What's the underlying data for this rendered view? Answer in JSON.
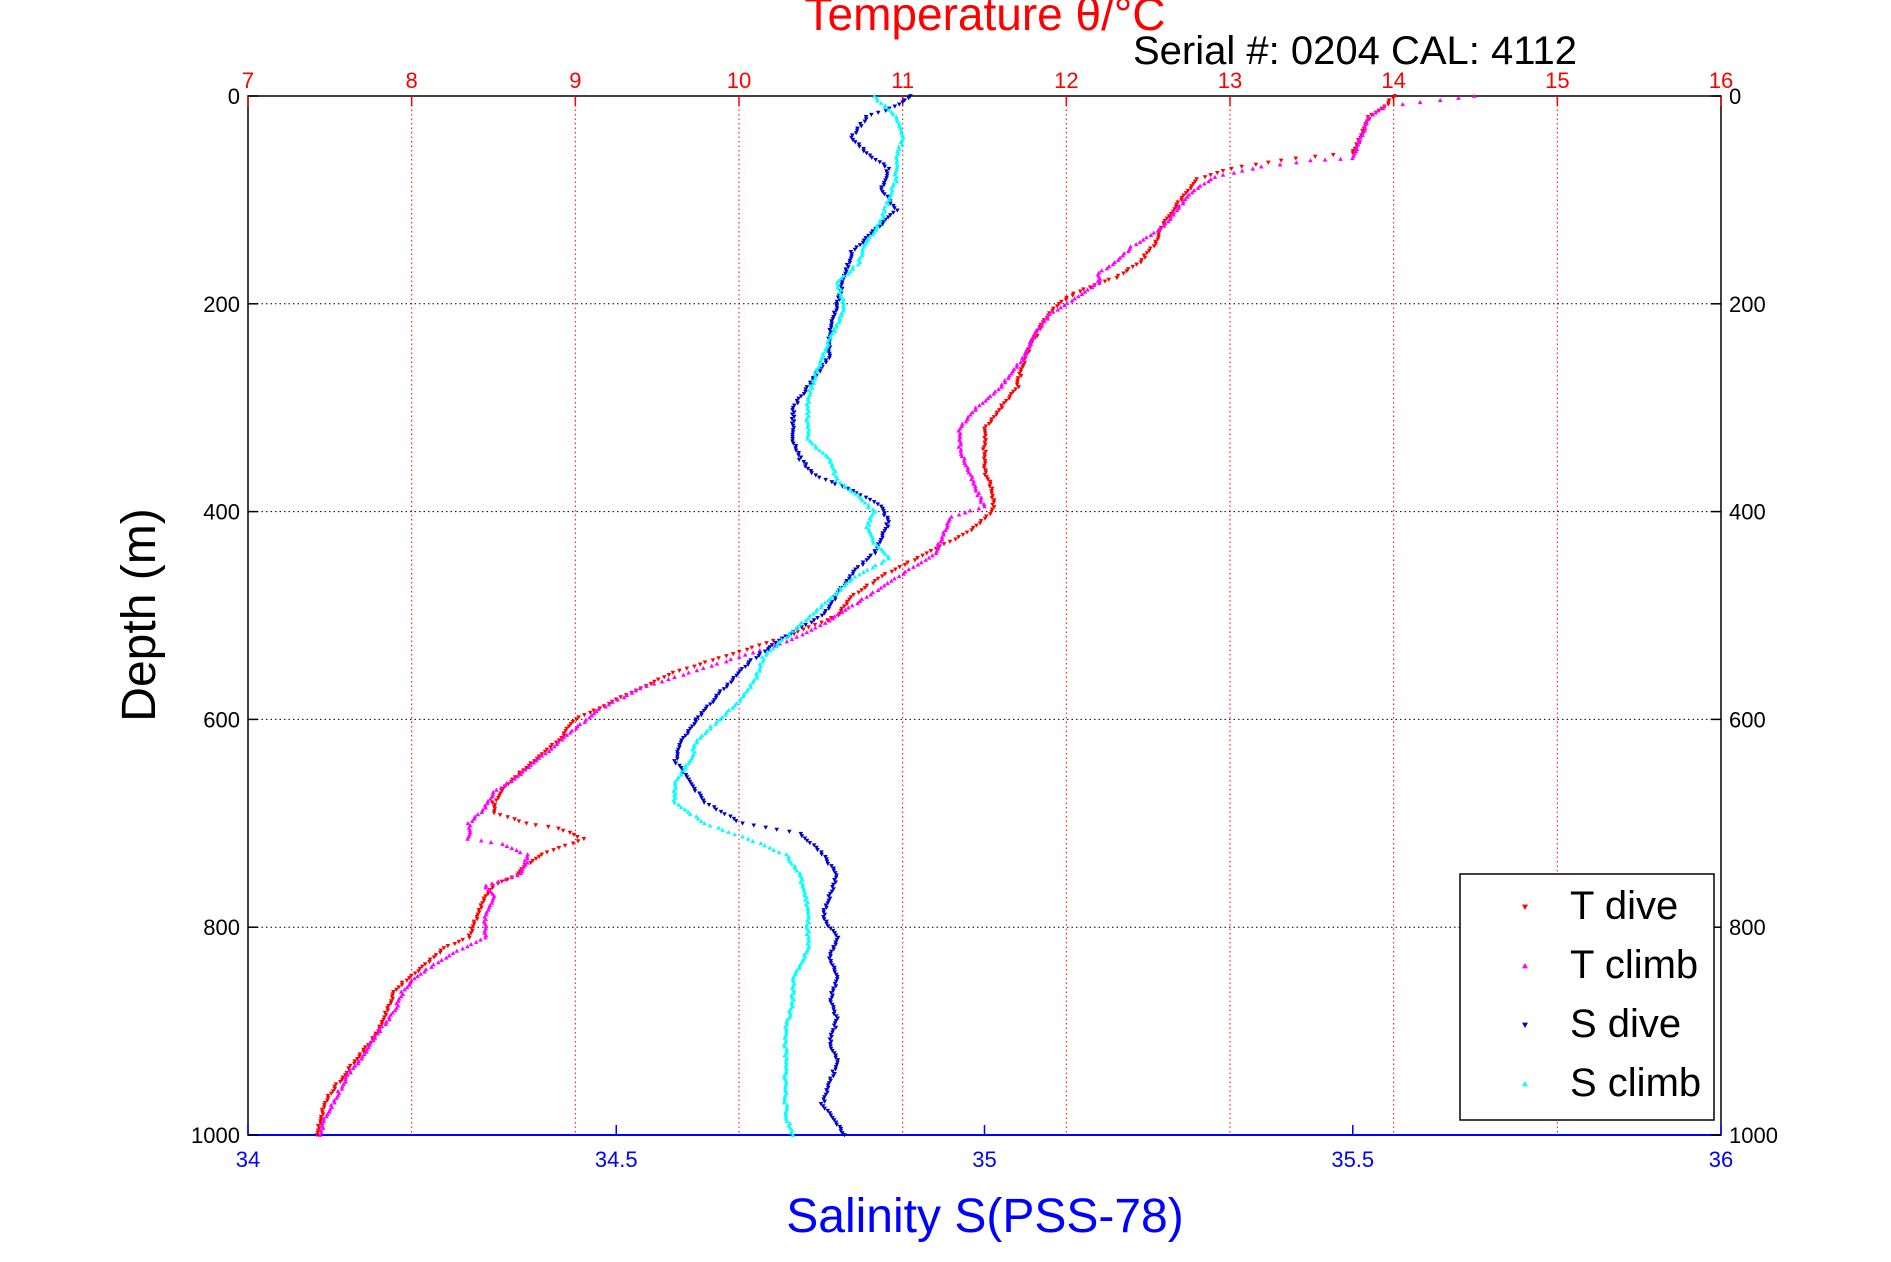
{
  "chart_data": {
    "type": "scatter",
    "title": "Temperature θ/°C",
    "annotation": "Serial #: 0204  CAL: 4112",
    "ylabel": "Depth (m)",
    "xlabel_bottom": "Salinity S(PSS-78)",
    "y_axis": {
      "range": [
        0,
        1000
      ],
      "reversed": true,
      "ticks": [
        "0",
        "200",
        "400",
        "600",
        "800",
        "1000"
      ],
      "tick_values": [
        0,
        200,
        400,
        600,
        800,
        1000
      ]
    },
    "x_top_axis": {
      "quantity": "temperature",
      "range": [
        7,
        16
      ],
      "ticks": [
        "7",
        "8",
        "9",
        "10",
        "11",
        "12",
        "13",
        "14",
        "15",
        "16"
      ],
      "tick_values": [
        7,
        8,
        9,
        10,
        11,
        12,
        13,
        14,
        15,
        16
      ]
    },
    "x_bottom_axis": {
      "quantity": "salinity",
      "range": [
        34,
        36
      ],
      "ticks": [
        "34",
        "34.5",
        "35",
        "35.5",
        "36"
      ],
      "tick_values": [
        34,
        34.5,
        35,
        35.5,
        36
      ]
    },
    "grid": true,
    "legend_position": "bottom-right",
    "colors": {
      "temperature_axis": "#ff0000",
      "salinity_axis": "#0000ff",
      "t_dive": "#ff0000",
      "t_climb": "#ff00ff",
      "s_dive": "#0000cc",
      "s_climb": "#00ffff"
    },
    "series": [
      {
        "name": "T dive",
        "axis": "temperature",
        "marker": "triangle-down",
        "color": "#ff0000",
        "points": [
          [
            14.0,
            0
          ],
          [
            13.95,
            10
          ],
          [
            13.85,
            20
          ],
          [
            13.8,
            40
          ],
          [
            13.75,
            55
          ],
          [
            13.4,
            60
          ],
          [
            13.0,
            70
          ],
          [
            12.8,
            80
          ],
          [
            12.7,
            100
          ],
          [
            12.6,
            120
          ],
          [
            12.55,
            140
          ],
          [
            12.45,
            160
          ],
          [
            12.3,
            175
          ],
          [
            12.2,
            180
          ],
          [
            12.05,
            190
          ],
          [
            11.95,
            200
          ],
          [
            11.85,
            220
          ],
          [
            11.75,
            250
          ],
          [
            11.7,
            280
          ],
          [
            11.6,
            300
          ],
          [
            11.5,
            320
          ],
          [
            11.5,
            340
          ],
          [
            11.5,
            360
          ],
          [
            11.55,
            380
          ],
          [
            11.55,
            400
          ],
          [
            11.4,
            420
          ],
          [
            11.15,
            440
          ],
          [
            10.9,
            460
          ],
          [
            10.7,
            480
          ],
          [
            10.6,
            500
          ],
          [
            10.3,
            520
          ],
          [
            10.0,
            535
          ],
          [
            9.8,
            545
          ],
          [
            9.6,
            555
          ],
          [
            9.4,
            570
          ],
          [
            9.2,
            585
          ],
          [
            9.0,
            600
          ],
          [
            8.9,
            620
          ],
          [
            8.75,
            640
          ],
          [
            8.6,
            660
          ],
          [
            8.5,
            680
          ],
          [
            8.5,
            690
          ],
          [
            8.7,
            700
          ],
          [
            8.9,
            705
          ],
          [
            9.05,
            715
          ],
          [
            8.8,
            730
          ],
          [
            8.7,
            740
          ],
          [
            8.65,
            750
          ],
          [
            8.5,
            760
          ],
          [
            8.45,
            770
          ],
          [
            8.4,
            790
          ],
          [
            8.35,
            810
          ],
          [
            8.2,
            820
          ],
          [
            8.05,
            840
          ],
          [
            7.9,
            860
          ],
          [
            7.85,
            880
          ],
          [
            7.8,
            900
          ],
          [
            7.7,
            920
          ],
          [
            7.6,
            940
          ],
          [
            7.5,
            960
          ],
          [
            7.45,
            980
          ],
          [
            7.42,
            1000
          ]
        ]
      },
      {
        "name": "T climb",
        "axis": "temperature",
        "marker": "triangle-up",
        "color": "#ff00ff",
        "points": [
          [
            14.5,
            0
          ],
          [
            13.95,
            10
          ],
          [
            13.85,
            20
          ],
          [
            13.8,
            40
          ],
          [
            13.75,
            60
          ],
          [
            13.5,
            62
          ],
          [
            13.2,
            68
          ],
          [
            12.9,
            78
          ],
          [
            12.75,
            95
          ],
          [
            12.6,
            125
          ],
          [
            12.4,
            145
          ],
          [
            12.3,
            160
          ],
          [
            12.2,
            170
          ],
          [
            12.2,
            180
          ],
          [
            12.05,
            195
          ],
          [
            11.9,
            210
          ],
          [
            11.8,
            230
          ],
          [
            11.75,
            250
          ],
          [
            11.6,
            280
          ],
          [
            11.45,
            300
          ],
          [
            11.35,
            320
          ],
          [
            11.35,
            340
          ],
          [
            11.4,
            360
          ],
          [
            11.45,
            380
          ],
          [
            11.5,
            395
          ],
          [
            11.3,
            405
          ],
          [
            11.25,
            420
          ],
          [
            11.2,
            440
          ],
          [
            11.0,
            460
          ],
          [
            10.8,
            480
          ],
          [
            10.55,
            505
          ],
          [
            10.3,
            525
          ],
          [
            10.0,
            540
          ],
          [
            9.7,
            555
          ],
          [
            9.4,
            570
          ],
          [
            9.15,
            590
          ],
          [
            8.95,
            615
          ],
          [
            8.8,
            635
          ],
          [
            8.65,
            655
          ],
          [
            8.5,
            670
          ],
          [
            8.45,
            685
          ],
          [
            8.35,
            700
          ],
          [
            8.35,
            715
          ],
          [
            8.55,
            720
          ],
          [
            8.7,
            730
          ],
          [
            8.7,
            740
          ],
          [
            8.65,
            750
          ],
          [
            8.45,
            760
          ],
          [
            8.5,
            770
          ],
          [
            8.45,
            790
          ],
          [
            8.45,
            810
          ],
          [
            8.25,
            825
          ],
          [
            8.05,
            845
          ],
          [
            7.95,
            860
          ],
          [
            7.9,
            880
          ],
          [
            7.8,
            900
          ],
          [
            7.72,
            920
          ],
          [
            7.62,
            940
          ],
          [
            7.55,
            960
          ],
          [
            7.48,
            980
          ],
          [
            7.44,
            1000
          ]
        ]
      },
      {
        "name": "S dive",
        "axis": "salinity",
        "marker": "triangle-down",
        "color": "#0000cc",
        "points": [
          [
            34.9,
            0
          ],
          [
            34.88,
            10
          ],
          [
            34.84,
            20
          ],
          [
            34.82,
            40
          ],
          [
            34.84,
            55
          ],
          [
            34.87,
            70
          ],
          [
            34.86,
            90
          ],
          [
            34.88,
            110
          ],
          [
            34.85,
            130
          ],
          [
            34.82,
            150
          ],
          [
            34.81,
            175
          ],
          [
            34.8,
            200
          ],
          [
            34.79,
            225
          ],
          [
            34.79,
            250
          ],
          [
            34.76,
            280
          ],
          [
            34.74,
            300
          ],
          [
            34.74,
            330
          ],
          [
            34.75,
            350
          ],
          [
            34.77,
            365
          ],
          [
            34.82,
            380
          ],
          [
            34.86,
            395
          ],
          [
            34.87,
            410
          ],
          [
            34.85,
            440
          ],
          [
            34.82,
            460
          ],
          [
            34.8,
            480
          ],
          [
            34.78,
            500
          ],
          [
            34.73,
            520
          ],
          [
            34.68,
            545
          ],
          [
            34.64,
            575
          ],
          [
            34.61,
            600
          ],
          [
            34.59,
            620
          ],
          [
            34.58,
            640
          ],
          [
            34.6,
            660
          ],
          [
            34.62,
            680
          ],
          [
            34.67,
            700
          ],
          [
            34.75,
            710
          ],
          [
            34.78,
            730
          ],
          [
            34.8,
            750
          ],
          [
            34.79,
            770
          ],
          [
            34.78,
            790
          ],
          [
            34.8,
            810
          ],
          [
            34.79,
            830
          ],
          [
            34.8,
            850
          ],
          [
            34.79,
            870
          ],
          [
            34.8,
            890
          ],
          [
            34.79,
            910
          ],
          [
            34.8,
            930
          ],
          [
            34.79,
            950
          ],
          [
            34.78,
            970
          ],
          [
            34.8,
            990
          ],
          [
            34.81,
            1000
          ]
        ]
      },
      {
        "name": "S climb",
        "axis": "salinity",
        "marker": "triangle-up",
        "color": "#00ffff",
        "points": [
          [
            34.85,
            0
          ],
          [
            34.88,
            20
          ],
          [
            34.89,
            40
          ],
          [
            34.88,
            60
          ],
          [
            34.88,
            80
          ],
          [
            34.87,
            100
          ],
          [
            34.86,
            120
          ],
          [
            34.84,
            140
          ],
          [
            34.83,
            160
          ],
          [
            34.8,
            180
          ],
          [
            34.81,
            200
          ],
          [
            34.8,
            220
          ],
          [
            34.78,
            250
          ],
          [
            34.77,
            270
          ],
          [
            34.76,
            290
          ],
          [
            34.76,
            310
          ],
          [
            34.76,
            330
          ],
          [
            34.79,
            350
          ],
          [
            34.8,
            370
          ],
          [
            34.83,
            385
          ],
          [
            34.85,
            400
          ],
          [
            34.84,
            415
          ],
          [
            34.85,
            430
          ],
          [
            34.87,
            445
          ],
          [
            34.82,
            465
          ],
          [
            34.78,
            490
          ],
          [
            34.74,
            515
          ],
          [
            34.7,
            540
          ],
          [
            34.69,
            560
          ],
          [
            34.67,
            580
          ],
          [
            34.64,
            600
          ],
          [
            34.61,
            620
          ],
          [
            34.6,
            640
          ],
          [
            34.58,
            660
          ],
          [
            34.58,
            680
          ],
          [
            34.62,
            700
          ],
          [
            34.68,
            715
          ],
          [
            34.73,
            730
          ],
          [
            34.75,
            750
          ],
          [
            34.76,
            780
          ],
          [
            34.76,
            800
          ],
          [
            34.76,
            820
          ],
          [
            34.74,
            850
          ],
          [
            34.74,
            870
          ],
          [
            34.73,
            900
          ],
          [
            34.73,
            930
          ],
          [
            34.73,
            960
          ],
          [
            34.73,
            980
          ],
          [
            34.74,
            1000
          ]
        ]
      }
    ]
  }
}
